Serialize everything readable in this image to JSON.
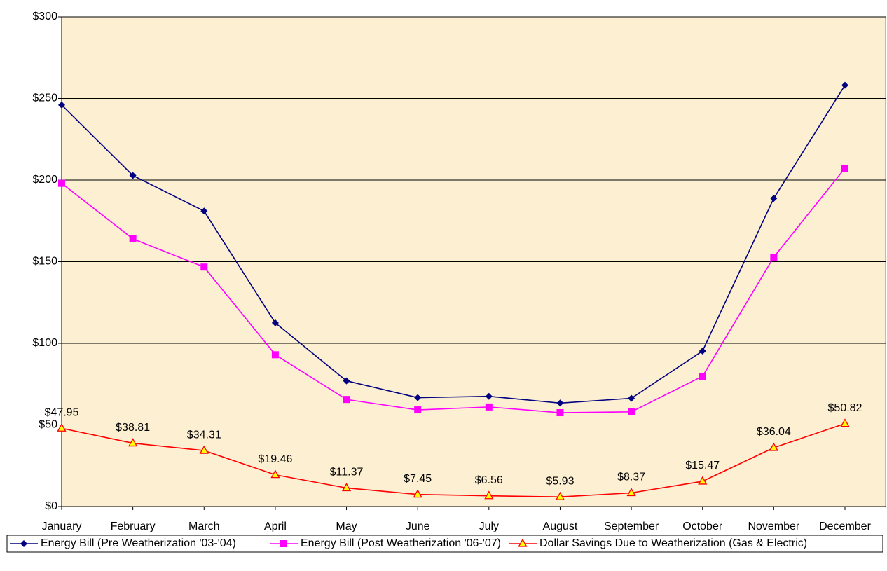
{
  "chart_data": {
    "type": "line",
    "categories": [
      "January",
      "February",
      "March",
      "April",
      "May",
      "June",
      "July",
      "August",
      "September",
      "October",
      "November",
      "December"
    ],
    "series": [
      {
        "name": "Energy Bill (Pre Weatherization '03-'04)",
        "color": "#000080",
        "marker": "diamond",
        "values": [
          246,
          202.8,
          181,
          112.5,
          77,
          66.7,
          67.5,
          63.4,
          66.3,
          95.3,
          188.8,
          258.1
        ]
      },
      {
        "name": "Energy Bill (Post Weatherization '06-'07)",
        "color": "#ff00ff",
        "marker": "square",
        "values": [
          198,
          164,
          146.7,
          93,
          65.6,
          59.2,
          61,
          57.5,
          58,
          79.8,
          152.8,
          207.3
        ]
      },
      {
        "name": "Dollar Savings Due to Weatherization (Gas & Electric)",
        "color": "#ff0000",
        "marker": "triangle",
        "values": [
          47.95,
          38.81,
          34.31,
          19.46,
          11.37,
          7.45,
          6.56,
          5.93,
          8.37,
          15.47,
          36.04,
          50.82
        ],
        "value_labels": [
          "$47.95",
          "$38.81",
          "$34.31",
          "$19.46",
          "$11.37",
          "$7.45",
          "$6.56",
          "$5.93",
          "$8.37",
          "$15.47",
          "$36.04",
          "$50.82"
        ]
      }
    ],
    "ylim": [
      0,
      300
    ],
    "yticks": [
      {
        "value": 0,
        "label": "$0"
      },
      {
        "value": 50,
        "label": "$50"
      },
      {
        "value": 100,
        "label": "$100"
      },
      {
        "value": 150,
        "label": "$150"
      },
      {
        "value": 200,
        "label": "$200"
      },
      {
        "value": 250,
        "label": "$250"
      },
      {
        "value": 300,
        "label": "$300"
      }
    ],
    "grid": true,
    "legend": "bottom"
  }
}
